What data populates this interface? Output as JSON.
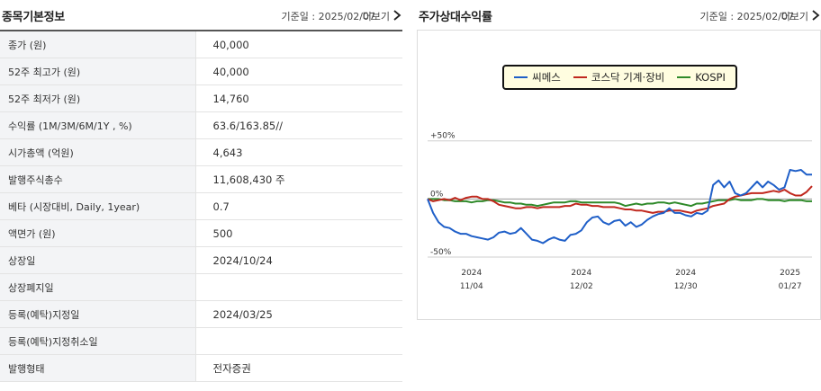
{
  "left": {
    "title": "종목기본정보",
    "date": "기준일 : 2025/02/07",
    "more": "더보기",
    "rows": [
      {
        "label": "종가 (원)",
        "value": "40,000"
      },
      {
        "label": "52주 최고가 (원)",
        "value": "40,000"
      },
      {
        "label": "52주 최저가 (원)",
        "value": "14,760"
      },
      {
        "label": "수익률 (1M/3M/6M/1Y , %)",
        "value": "63.6/163.85//"
      },
      {
        "label": "시가총액 (억원)",
        "value": "4,643"
      },
      {
        "label": "발행주식총수",
        "value": "11,608,430 주"
      },
      {
        "label": "베타 (시장대비, Daily, 1year)",
        "value": "0.7"
      },
      {
        "label": "액면가 (원)",
        "value": "500"
      },
      {
        "label": "상장일",
        "value": "2024/10/24"
      },
      {
        "label": "상장폐지일",
        "value": ""
      },
      {
        "label": "등록(예탁)지정일",
        "value": "2024/03/25"
      },
      {
        "label": "등록(예탁)지정취소일",
        "value": ""
      },
      {
        "label": "발행형태",
        "value": "전자증권"
      }
    ]
  },
  "right": {
    "title": "주가상대수익률",
    "date": "기준일 : 2025/02/07",
    "more": "더보기"
  },
  "chart_data": {
    "type": "line",
    "ylim": [
      -50,
      90
    ],
    "y_ticks": [
      {
        "value": 50,
        "label": "+50%"
      },
      {
        "value": 0,
        "label": "0%"
      },
      {
        "value": -50,
        "label": "-50%"
      }
    ],
    "x_ticks": [
      {
        "idx": 8,
        "line1": "2024",
        "line2": "11/04"
      },
      {
        "idx": 28,
        "line1": "2024",
        "line2": "12/02"
      },
      {
        "idx": 47,
        "line1": "2024",
        "line2": "12/30"
      },
      {
        "idx": 66,
        "line1": "2025",
        "line2": "01/27"
      }
    ],
    "n_points": 71,
    "grid": true,
    "legend": "top-center",
    "series": [
      {
        "name": "씨메스",
        "color": "#1f5fc8",
        "values": [
          0,
          -12,
          -20,
          -24,
          -25,
          -28,
          -30,
          -30,
          -32,
          -33,
          -34,
          -35,
          -33,
          -29,
          -28,
          -30,
          -29,
          -25,
          -30,
          -35,
          -36,
          -38,
          -35,
          -33,
          -35,
          -36,
          -31,
          -30,
          -27,
          -20,
          -16,
          -15,
          -20,
          -22,
          -19,
          -18,
          -23,
          -20,
          -24,
          -22,
          -18,
          -15,
          -13,
          -12,
          -8,
          -12,
          -12,
          -14,
          -15,
          -12,
          -13,
          -10,
          12,
          16,
          10,
          15,
          5,
          3,
          5,
          10,
          15,
          10,
          15,
          12,
          8,
          10,
          25,
          24,
          25,
          21,
          21
        ]
      },
      {
        "name": "코스닥 기계·장비",
        "color": "#c0281e",
        "values": [
          0,
          -2,
          -1,
          0,
          -1,
          1,
          -1,
          1,
          2,
          2,
          0,
          0,
          -2,
          -5,
          -6,
          -7,
          -8,
          -8,
          -7,
          -7,
          -8,
          -7,
          -7,
          -7,
          -7,
          -6,
          -6,
          -4,
          -5,
          -5,
          -6,
          -6,
          -7,
          -7,
          -7,
          -8,
          -9,
          -9,
          -10,
          -10,
          -11,
          -12,
          -11,
          -11,
          -10,
          -10,
          -10,
          -11,
          -12,
          -10,
          -9,
          -8,
          -6,
          -5,
          -4,
          0,
          2,
          3,
          4,
          5,
          5,
          5,
          6,
          7,
          6,
          8,
          5,
          3,
          3,
          6,
          11
        ]
      },
      {
        "name": "KOSPI",
        "color": "#2f8a2a",
        "values": [
          0,
          0,
          0,
          -1,
          -1,
          -2,
          -2,
          -2,
          -3,
          -2,
          -2,
          -1,
          -1,
          -2,
          -3,
          -3,
          -4,
          -4,
          -5,
          -5,
          -6,
          -5,
          -4,
          -3,
          -3,
          -3,
          -2,
          -2,
          -3,
          -3,
          -3,
          -3,
          -3,
          -3,
          -3,
          -4,
          -6,
          -5,
          -4,
          -5,
          -4,
          -4,
          -3,
          -3,
          -4,
          -3,
          -4,
          -5,
          -6,
          -4,
          -4,
          -3,
          -2,
          -1,
          -1,
          -1,
          0,
          -1,
          -1,
          -1,
          0,
          0,
          -1,
          -1,
          -1,
          -2,
          -1,
          -1,
          -1,
          -2,
          -2
        ]
      }
    ]
  }
}
